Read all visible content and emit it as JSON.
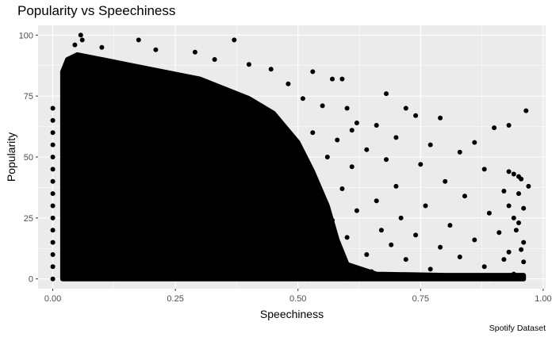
{
  "chart_data": {
    "type": "scatter",
    "title": "Popularity vs Speechiness",
    "xlabel": "Speechiness",
    "ylabel": "Popularity",
    "caption": "Spotify Dataset",
    "xlim": [
      -0.03,
      1.005
    ],
    "ylim": [
      -4,
      104
    ],
    "x_ticks": [
      0.0,
      0.25,
      0.5,
      0.75,
      1.0
    ],
    "x_tick_labels": [
      "0.00",
      "0.25",
      "0.50",
      "0.75",
      "1.00"
    ],
    "y_ticks": [
      0,
      25,
      50,
      75,
      100
    ],
    "y_tick_labels": [
      "0",
      "25",
      "50",
      "75",
      "100"
    ],
    "grid": true,
    "panel_color": "#ebebeb",
    "point_color": "#000000",
    "points": [
      {
        "x": 0.057,
        "y": 100
      },
      {
        "x": 0.06,
        "y": 98
      },
      {
        "x": 0.175,
        "y": 98
      },
      {
        "x": 0.37,
        "y": 98
      },
      {
        "x": 0.045,
        "y": 96
      },
      {
        "x": 0.1,
        "y": 95
      },
      {
        "x": 0.21,
        "y": 94
      },
      {
        "x": 0.29,
        "y": 93
      },
      {
        "x": 0.33,
        "y": 90
      },
      {
        "x": 0.4,
        "y": 88
      },
      {
        "x": 0.445,
        "y": 86
      },
      {
        "x": 0.53,
        "y": 85
      },
      {
        "x": 0.57,
        "y": 82
      },
      {
        "x": 0.59,
        "y": 82
      },
      {
        "x": 0.48,
        "y": 80
      },
      {
        "x": 0.68,
        "y": 76
      },
      {
        "x": 0.51,
        "y": 74
      },
      {
        "x": 0.55,
        "y": 71
      },
      {
        "x": 0.6,
        "y": 70
      },
      {
        "x": 0.965,
        "y": 69
      },
      {
        "x": 0.72,
        "y": 70
      },
      {
        "x": 0.74,
        "y": 67
      },
      {
        "x": 0.79,
        "y": 66
      },
      {
        "x": 0.62,
        "y": 64
      },
      {
        "x": 0.66,
        "y": 63
      },
      {
        "x": 0.93,
        "y": 63
      },
      {
        "x": 0.9,
        "y": 62
      },
      {
        "x": 0.61,
        "y": 61
      },
      {
        "x": 0.53,
        "y": 60
      },
      {
        "x": 0.7,
        "y": 58
      },
      {
        "x": 0.58,
        "y": 57
      },
      {
        "x": 0.86,
        "y": 56
      },
      {
        "x": 0.77,
        "y": 55
      },
      {
        "x": 0.64,
        "y": 53
      },
      {
        "x": 0.83,
        "y": 52
      },
      {
        "x": 0.56,
        "y": 50
      },
      {
        "x": 0.68,
        "y": 49
      },
      {
        "x": 0.75,
        "y": 47
      },
      {
        "x": 0.61,
        "y": 46
      },
      {
        "x": 0.88,
        "y": 45
      },
      {
        "x": 0.93,
        "y": 44
      },
      {
        "x": 0.94,
        "y": 43
      },
      {
        "x": 0.95,
        "y": 42
      },
      {
        "x": 0.955,
        "y": 41
      },
      {
        "x": 0.8,
        "y": 40
      },
      {
        "x": 0.7,
        "y": 38
      },
      {
        "x": 0.59,
        "y": 37
      },
      {
        "x": 0.92,
        "y": 36
      },
      {
        "x": 0.54,
        "y": 35
      },
      {
        "x": 0.84,
        "y": 34
      },
      {
        "x": 0.66,
        "y": 32
      },
      {
        "x": 0.76,
        "y": 30
      },
      {
        "x": 0.96,
        "y": 29
      },
      {
        "x": 0.62,
        "y": 28
      },
      {
        "x": 0.89,
        "y": 27
      },
      {
        "x": 0.71,
        "y": 25
      },
      {
        "x": 0.57,
        "y": 24
      },
      {
        "x": 0.95,
        "y": 23
      },
      {
        "x": 0.81,
        "y": 22
      },
      {
        "x": 0.67,
        "y": 20
      },
      {
        "x": 0.91,
        "y": 19
      },
      {
        "x": 0.74,
        "y": 18
      },
      {
        "x": 0.6,
        "y": 17
      },
      {
        "x": 0.86,
        "y": 16
      },
      {
        "x": 0.96,
        "y": 15
      },
      {
        "x": 0.69,
        "y": 14
      },
      {
        "x": 0.79,
        "y": 13
      },
      {
        "x": 0.55,
        "y": 12
      },
      {
        "x": 0.93,
        "y": 11
      },
      {
        "x": 0.64,
        "y": 10
      },
      {
        "x": 0.83,
        "y": 9
      },
      {
        "x": 0.72,
        "y": 8
      },
      {
        "x": 0.96,
        "y": 7
      },
      {
        "x": 0.58,
        "y": 6
      },
      {
        "x": 0.88,
        "y": 5
      },
      {
        "x": 0.77,
        "y": 4
      },
      {
        "x": 0.65,
        "y": 3
      },
      {
        "x": 0.94,
        "y": 2
      },
      {
        "x": 0.7,
        "y": 1
      },
      {
        "x": 0.85,
        "y": 1
      },
      {
        "x": 0.96,
        "y": 0
      },
      {
        "x": 0.52,
        "y": 0
      },
      {
        "x": 0.6,
        "y": 0
      },
      {
        "x": 0.75,
        "y": 0
      },
      {
        "x": 0.9,
        "y": 0
      },
      {
        "x": 0.93,
        "y": 30
      },
      {
        "x": 0.94,
        "y": 25
      },
      {
        "x": 0.95,
        "y": 35
      },
      {
        "x": 0.945,
        "y": 20
      },
      {
        "x": 0.955,
        "y": 12
      },
      {
        "x": 0.92,
        "y": 8
      },
      {
        "x": 0.97,
        "y": 38
      },
      {
        "x": 0.0,
        "y": 70
      },
      {
        "x": 0.0,
        "y": 65
      },
      {
        "x": 0.0,
        "y": 60
      },
      {
        "x": 0.0,
        "y": 55
      },
      {
        "x": 0.0,
        "y": 50
      },
      {
        "x": 0.0,
        "y": 45
      },
      {
        "x": 0.0,
        "y": 40
      },
      {
        "x": 0.0,
        "y": 35
      },
      {
        "x": 0.0,
        "y": 30
      },
      {
        "x": 0.0,
        "y": 25
      },
      {
        "x": 0.0,
        "y": 20
      },
      {
        "x": 0.0,
        "y": 15
      },
      {
        "x": 0.0,
        "y": 10
      },
      {
        "x": 0.0,
        "y": 5
      },
      {
        "x": 0.0,
        "y": 0
      }
    ],
    "dense_region_note": "Speechiness 0.02–0.5 is saturated with points from popularity 0 to about 90"
  }
}
